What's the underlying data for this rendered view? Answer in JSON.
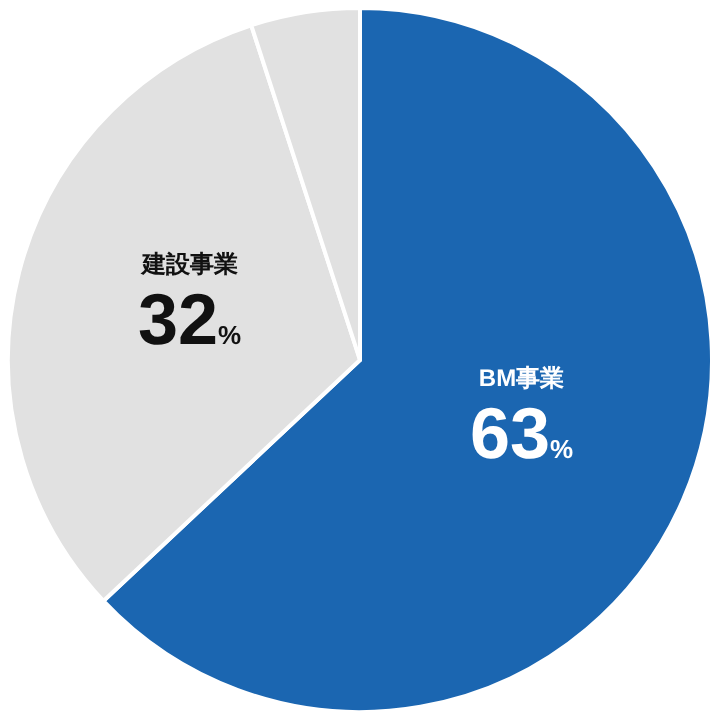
{
  "chart_data": {
    "type": "pie",
    "categories": [
      "BM事業",
      "建設事業",
      null
    ],
    "values": [
      63,
      32,
      5
    ],
    "colors": [
      "#1b66b1",
      "#e1e1e1",
      "#e1e1e1"
    ],
    "value_labels": [
      "63%",
      "32%",
      null
    ]
  }
}
